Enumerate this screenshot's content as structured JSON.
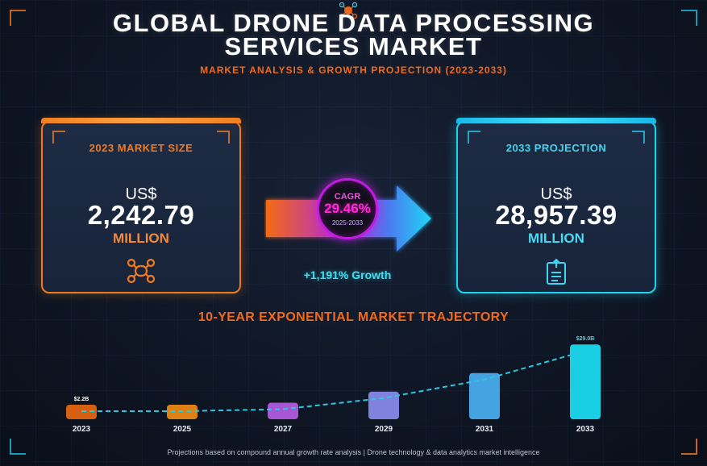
{
  "title_line1": "GLOBAL DRONE DATA PROCESSING",
  "title_line2": "SERVICES MARKET",
  "subtitle": "MARKET ANALYSIS & GROWTH PROJECTION (2023-2033)",
  "left_card": {
    "label": "2023 MARKET SIZE",
    "currency": "US$",
    "value": "2,242.79",
    "unit": "MILLION",
    "icon": "drone-icon"
  },
  "right_card": {
    "label": "2033 PROJECTION",
    "currency": "US$",
    "value": "28,957.39",
    "unit": "MILLION",
    "icon": "document-upload-icon"
  },
  "cagr": {
    "label": "CAGR",
    "value": "29.46%",
    "range": "2025-2033"
  },
  "growth": "+1,191% Growth",
  "trajectory_title": "10-YEAR EXPONENTIAL MARKET TRAJECTORY",
  "footer": "Projections based on compound annual growth rate analysis | Drone technology & data analytics market intelligence",
  "colors": {
    "orange": "#f07a1e",
    "cyan": "#1fd3f0",
    "magenta": "#c21be0",
    "background": "#0e1523"
  },
  "chart_data": {
    "type": "bar",
    "title": "10-YEAR EXPONENTIAL MARKET TRAJECTORY",
    "categories": [
      "2023",
      "2025",
      "2027",
      "2029",
      "2031",
      "2033"
    ],
    "values": [
      2.2,
      3.8,
      6.4,
      10.7,
      17.9,
      29.0
    ],
    "unit": "US$ Billion",
    "data_labels": {
      "2023": "$2.2B",
      "2033": "$29.0B"
    },
    "bar_colors": [
      "#e8670f",
      "#f08a12",
      "#b65ce6",
      "#8a8cef",
      "#4bb0f3",
      "#19e0f5"
    ],
    "trend_line": true,
    "ylim": [
      0,
      30
    ]
  }
}
